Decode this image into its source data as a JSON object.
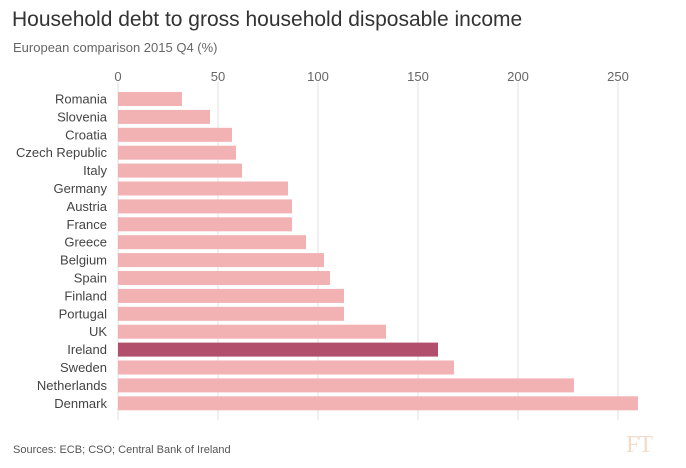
{
  "header": {
    "title": "Household debt to gross household disposable income",
    "subtitle": "European comparison 2015 Q4 (%)"
  },
  "footer": {
    "source": "Sources: ECB; CSO; Central Bank of Ireland",
    "logo": "FT"
  },
  "colors": {
    "bar": "#f2b1b2",
    "highlight": "#b14f6c",
    "grid": "#e2e2e2"
  },
  "chart_data": {
    "type": "bar",
    "orientation": "horizontal",
    "title": "Household debt to gross household disposable income",
    "subtitle": "European comparison 2015 Q4 (%)",
    "xlabel": "",
    "ylabel": "",
    "xlim": [
      0,
      260
    ],
    "ticks": [
      0,
      50,
      100,
      150,
      200,
      250
    ],
    "tick_position": "top",
    "highlight": "Ireland",
    "categories": [
      "Romania",
      "Slovenia",
      "Croatia",
      "Czech Republic",
      "Italy",
      "Germany",
      "Austria",
      "France",
      "Greece",
      "Belgium",
      "Spain",
      "Finland",
      "Portugal",
      "UK",
      "Ireland",
      "Sweden",
      "Netherlands",
      "Denmark"
    ],
    "values": [
      32,
      46,
      57,
      59,
      62,
      85,
      87,
      87,
      94,
      103,
      106,
      113,
      113,
      134,
      160,
      168,
      228,
      260
    ]
  }
}
